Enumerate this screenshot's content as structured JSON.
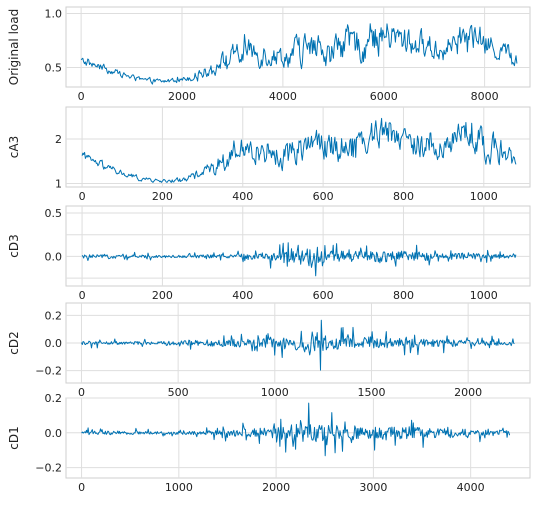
{
  "figure": {
    "line_color": "#0072B2",
    "grid_color": "#dedede",
    "frame_color": "#cfcfcf",
    "text_color": "#222222"
  },
  "chart_data": [
    {
      "type": "line",
      "ylabel": "Original load",
      "xlim": [
        -300,
        8900
      ],
      "ylim": [
        0.32,
        1.06
      ],
      "x_ticks": [
        0,
        2000,
        4000,
        6000,
        8000
      ],
      "y_ticks": [
        0.5,
        1.0
      ],
      "y_tick_labels": [
        "0.5",
        "1.0"
      ],
      "grid": true,
      "series": [
        {
          "x": [
            0,
            400,
            800,
            1200,
            1600,
            2000,
            2400,
            2800,
            3200,
            3600,
            4000,
            4400,
            4800,
            5200,
            5600,
            6000,
            6400,
            6800,
            7200,
            7600,
            8000,
            8400,
            8640
          ],
          "y": [
            0.56,
            0.5,
            0.44,
            0.38,
            0.37,
            0.39,
            0.45,
            0.55,
            0.62,
            0.65,
            0.6,
            0.66,
            0.63,
            0.7,
            0.72,
            0.8,
            0.74,
            0.7,
            0.66,
            0.8,
            0.72,
            0.64,
            0.56
          ],
          "noise": [
            0.03,
            0.03,
            0.02,
            0.02,
            0.02,
            0.02,
            0.04,
            0.07,
            0.1,
            0.1,
            0.08,
            0.13,
            0.1,
            0.12,
            0.13,
            0.13,
            0.11,
            0.1,
            0.09,
            0.12,
            0.1,
            0.08,
            0.05
          ]
        }
      ]
    },
    {
      "type": "line",
      "ylabel": "cA3",
      "xlim": [
        -40,
        1115
      ],
      "ylim": [
        0.92,
        2.72
      ],
      "x_ticks": [
        0,
        200,
        400,
        600,
        800,
        1000
      ],
      "y_ticks": [
        1,
        2
      ],
      "y_tick_labels": [
        "1",
        "2"
      ],
      "grid": true,
      "series": [
        {
          "x": [
            0,
            50,
            100,
            150,
            200,
            250,
            300,
            350,
            400,
            450,
            500,
            550,
            600,
            650,
            700,
            750,
            800,
            850,
            900,
            950,
            1000,
            1050,
            1080
          ],
          "y": [
            1.6,
            1.4,
            1.22,
            1.1,
            1.05,
            1.08,
            1.25,
            1.5,
            1.7,
            1.78,
            1.6,
            1.95,
            1.85,
            1.9,
            2.0,
            2.25,
            2.05,
            1.9,
            1.75,
            2.25,
            1.9,
            1.7,
            1.45
          ],
          "noise": [
            0.08,
            0.07,
            0.06,
            0.04,
            0.03,
            0.05,
            0.1,
            0.16,
            0.22,
            0.25,
            0.22,
            0.3,
            0.28,
            0.28,
            0.3,
            0.32,
            0.28,
            0.26,
            0.24,
            0.3,
            0.26,
            0.22,
            0.12
          ]
        }
      ]
    },
    {
      "type": "line",
      "ylabel": "cD3",
      "xlim": [
        -40,
        1115
      ],
      "ylim": [
        -0.34,
        0.58
      ],
      "x_ticks": [
        0,
        200,
        400,
        600,
        800,
        1000
      ],
      "y_ticks": [
        -0.25,
        0.0,
        0.25,
        0.5
      ],
      "y_tick_labels": [
        "",
        "0.0",
        "",
        "0.5"
      ],
      "grid": true,
      "series": [
        {
          "x": [
            0,
            100,
            200,
            300,
            400,
            450,
            500,
            550,
            570,
            600,
            650,
            700,
            750,
            800,
            850,
            900,
            950,
            1000,
            1080
          ],
          "y": [
            0,
            0,
            0,
            0,
            0,
            0,
            0,
            0,
            0,
            0,
            0,
            0,
            0,
            0,
            0,
            0,
            0,
            0,
            0
          ],
          "amplitude": [
            0.06,
            0.05,
            0.04,
            0.05,
            0.08,
            0.12,
            0.16,
            0.22,
            0.45,
            0.2,
            0.18,
            0.16,
            0.2,
            0.18,
            0.14,
            0.1,
            0.12,
            0.08,
            0.05
          ]
        }
      ]
    },
    {
      "type": "line",
      "ylabel": "cD2",
      "xlim": [
        -80,
        2320
      ],
      "ylim": [
        -0.29,
        0.29
      ],
      "x_ticks": [
        0,
        500,
        1000,
        1500,
        2000
      ],
      "y_ticks": [
        -0.2,
        0.0,
        0.2
      ],
      "y_tick_labels": [
        "−0.2",
        "0.0",
        "0.2"
      ],
      "grid": true,
      "series": [
        {
          "x": [
            0,
            200,
            400,
            600,
            800,
            1000,
            1100,
            1180,
            1300,
            1400,
            1500,
            1600,
            1700,
            1800,
            1900,
            2000,
            2150,
            2240
          ],
          "y": [
            0,
            0,
            0,
            0,
            0,
            0,
            0,
            0,
            0,
            0,
            0,
            0,
            0,
            0,
            0,
            0,
            0,
            0
          ],
          "amplitude": [
            0.04,
            0.03,
            0.03,
            0.06,
            0.08,
            0.1,
            0.14,
            0.27,
            0.14,
            0.12,
            0.13,
            0.11,
            0.1,
            0.08,
            0.07,
            0.06,
            0.05,
            0.04
          ]
        }
      ]
    },
    {
      "type": "line",
      "ylabel": "cD1",
      "xlim": [
        -160,
        4610
      ],
      "ylim": [
        -0.26,
        0.2
      ],
      "x_ticks": [
        0,
        1000,
        2000,
        3000,
        4000
      ],
      "y_ticks": [
        -0.2,
        0.0,
        0.2
      ],
      "y_tick_labels": [
        "−0.2",
        "0.0",
        "0.2"
      ],
      "grid": true,
      "series": [
        {
          "x": [
            0,
            400,
            800,
            1200,
            1600,
            2000,
            2200,
            2300,
            2600,
            3000,
            3400,
            3800,
            4200,
            4400
          ],
          "y": [
            0,
            0,
            0,
            0,
            0,
            0,
            0,
            0,
            0,
            0,
            0,
            0,
            0,
            0
          ],
          "amplitude": [
            0.03,
            0.03,
            0.02,
            0.03,
            0.06,
            0.09,
            0.15,
            0.18,
            0.12,
            0.11,
            0.1,
            0.07,
            0.05,
            0.04
          ]
        }
      ]
    }
  ]
}
